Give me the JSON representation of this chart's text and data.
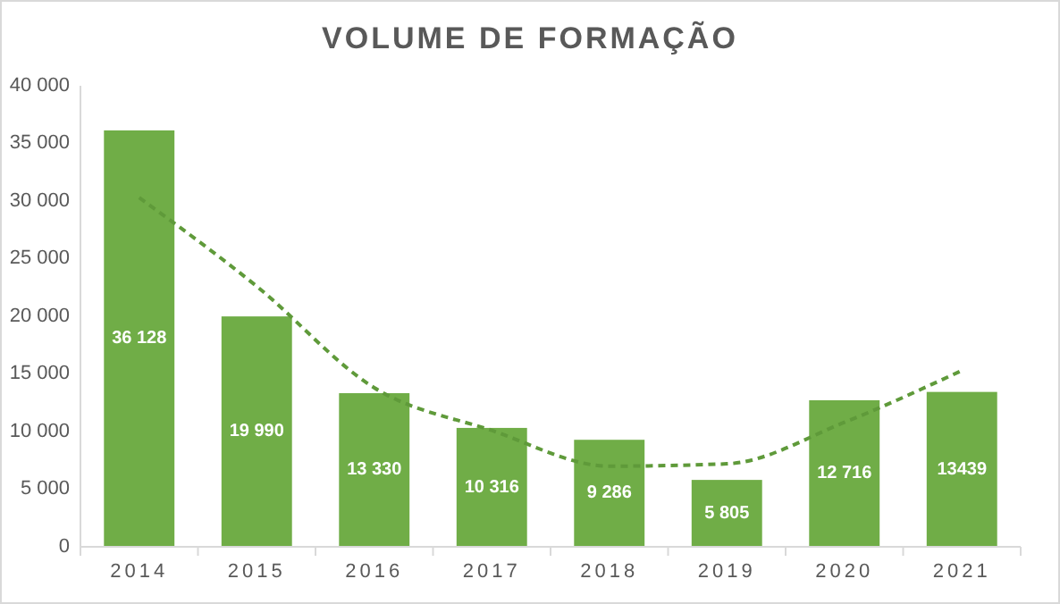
{
  "chart_data": {
    "type": "bar",
    "title": "VOLUME DE FORMAÇÃO",
    "categories": [
      "2014",
      "2015",
      "2016",
      "2017",
      "2018",
      "2019",
      "2020",
      "2021"
    ],
    "series": [
      {
        "color": "#70ad47",
        "values": [
          36128,
          19990,
          13330,
          10316,
          9286,
          5805,
          12716,
          13439
        ],
        "value_labels": [
          "36 128",
          "19 990",
          "13 330",
          "10 316",
          "9 286",
          "5 805",
          "12 716",
          "13439"
        ]
      },
      {
        "type": "line",
        "color": "#5f9a3a",
        "line_style": "dashed",
        "values": [
          30300,
          22600,
          13800,
          10100,
          7000,
          7200,
          10800,
          15300
        ]
      }
    ],
    "ylim": [
      0,
      40000
    ],
    "yticks": [
      {
        "value": 0,
        "label": "0"
      },
      {
        "value": 5000,
        "label": "5 000"
      },
      {
        "value": 10000,
        "label": "10 000"
      },
      {
        "value": 15000,
        "label": "15 000"
      },
      {
        "value": 20000,
        "label": "20 000"
      },
      {
        "value": 25000,
        "label": "25 000"
      },
      {
        "value": 30000,
        "label": "30 000"
      },
      {
        "value": 35000,
        "label": "35 000"
      },
      {
        "value": 40000,
        "label": "40 000"
      }
    ],
    "grid": false
  }
}
